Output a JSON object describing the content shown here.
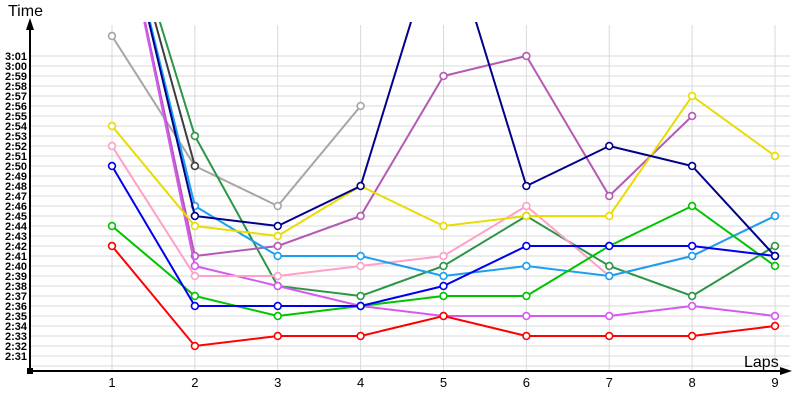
{
  "chart_data": {
    "type": "line",
    "title": "",
    "xlabel": "Laps",
    "ylabel": "Time",
    "x_categories": [
      "1",
      "2",
      "3",
      "4",
      "5",
      "6",
      "7",
      "8",
      "9"
    ],
    "y_tick_labels": [
      "3:01",
      "3:00",
      "2:59",
      "2:58",
      "2:57",
      "2:56",
      "2:55",
      "2:54",
      "2:53",
      "2:52",
      "2:51",
      "2:50",
      "2:49",
      "2:48",
      "2:47",
      "2:46",
      "2:45",
      "2:44",
      "2:43",
      "2:42",
      "2:41",
      "2:40",
      "2:39",
      "2:38",
      "2:37",
      "2:36",
      "2:35",
      "2:34",
      "2:33",
      "2:32",
      "2:31"
    ],
    "y_axis_range_visible": [
      "2:31",
      "3:01"
    ],
    "grid": true,
    "legend": "none",
    "marker": "hollow-circle",
    "clipping_note": "Values of 3:15/3:20 are estimates for line segments that run off the top edge of the plot (clipped).",
    "series": [
      {
        "name": "gray",
        "color": "#a6a6a6",
        "values": [
          "3:03",
          "2:50",
          "2:46",
          "2:56",
          null,
          null,
          null,
          null,
          null
        ]
      },
      {
        "name": "black",
        "color": "#3d3d3d",
        "values": [
          "3:20",
          "2:50",
          null,
          null,
          null,
          null,
          null,
          null,
          null
        ]
      },
      {
        "name": "dark-green",
        "color": "#2c9646",
        "values": [
          "3:20",
          "2:53",
          "2:38",
          "2:37",
          "2:40",
          "2:45",
          "2:40",
          "2:37",
          "2:42"
        ]
      },
      {
        "name": "purple",
        "color": "#b45ab4",
        "values": [
          "3:20",
          "2:41",
          "2:42",
          "2:45",
          "2:59",
          "3:01",
          "2:47",
          "2:55",
          null
        ]
      },
      {
        "name": "violet",
        "color": "#d55af0",
        "values": [
          "3:20",
          "2:40",
          "2:38",
          "2:36",
          "2:35",
          "2:35",
          "2:35",
          "2:36",
          "2:35"
        ]
      },
      {
        "name": "pink",
        "color": "#ffa0c8",
        "values": [
          "2:52",
          "2:39",
          "2:39",
          "2:40",
          "2:41",
          "2:46",
          "2:39",
          "2:41",
          "2:45"
        ]
      },
      {
        "name": "cyan",
        "color": "#1ba0f0",
        "values": [
          "3:20",
          "2:46",
          "2:41",
          "2:41",
          "2:39",
          "2:40",
          "2:39",
          "2:41",
          "2:45"
        ]
      },
      {
        "name": "yellow",
        "color": "#e8dc00",
        "values": [
          "2:54",
          "2:44",
          "2:43",
          "2:48",
          "2:44",
          "2:45",
          "2:45",
          "2:57",
          "2:51"
        ]
      },
      {
        "name": "green",
        "color": "#00c400",
        "values": [
          "2:44",
          "2:37",
          "2:35",
          "2:36",
          "2:37",
          "2:37",
          "2:42",
          "2:46",
          "2:40"
        ]
      },
      {
        "name": "blue",
        "color": "#0000f0",
        "values": [
          "2:50",
          "2:36",
          "2:36",
          "2:36",
          "2:38",
          "2:42",
          "2:42",
          "2:42",
          "2:41"
        ]
      },
      {
        "name": "navy",
        "color": "#00008b",
        "values": [
          "3:20",
          "2:45",
          "2:44",
          "2:48",
          "3:15",
          "2:48",
          "2:52",
          "2:50",
          "2:41"
        ]
      },
      {
        "name": "red",
        "color": "#ff0000",
        "values": [
          "2:42",
          "2:32",
          "2:33",
          "2:33",
          "2:35",
          "2:33",
          "2:33",
          "2:33",
          "2:34"
        ]
      }
    ]
  }
}
